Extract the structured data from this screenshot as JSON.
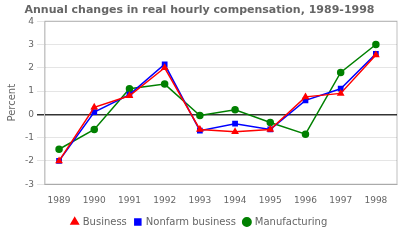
{
  "chart_data": {
    "type": "line",
    "title": "Annual changes in real hourly compensation, 1989-1998",
    "ylabel": "Percent",
    "x": [
      1989,
      1990,
      1991,
      1992,
      1993,
      1994,
      1995,
      1996,
      1997,
      1998
    ],
    "series": [
      {
        "name": "Business",
        "color": "#ff0000",
        "marker": "triangle",
        "values": [
          -2.0,
          0.3,
          0.8,
          2.0,
          -0.65,
          -0.75,
          -0.65,
          0.75,
          0.9,
          2.55
        ]
      },
      {
        "name": "Nonfarm business",
        "color": "#0000ff",
        "marker": "square",
        "values": [
          -2.0,
          0.1,
          0.85,
          2.15,
          -0.7,
          -0.4,
          -0.65,
          0.6,
          1.1,
          2.6
        ]
      },
      {
        "name": "Manufacturing",
        "color": "#008000",
        "marker": "circle",
        "values": [
          -1.5,
          -0.65,
          1.1,
          1.3,
          -0.05,
          0.2,
          -0.35,
          -0.85,
          1.8,
          3.0
        ]
      }
    ],
    "xlim": [
      1988.6,
      1998.6
    ],
    "xticks": [
      1989,
      1990,
      1991,
      1992,
      1993,
      1994,
      1995,
      1996,
      1997,
      1998
    ],
    "ylim": [
      -3,
      4
    ],
    "yticks": [
      -3,
      -2,
      -1,
      0,
      1,
      2,
      3,
      4
    ],
    "grid": true,
    "legend": "bottom"
  }
}
